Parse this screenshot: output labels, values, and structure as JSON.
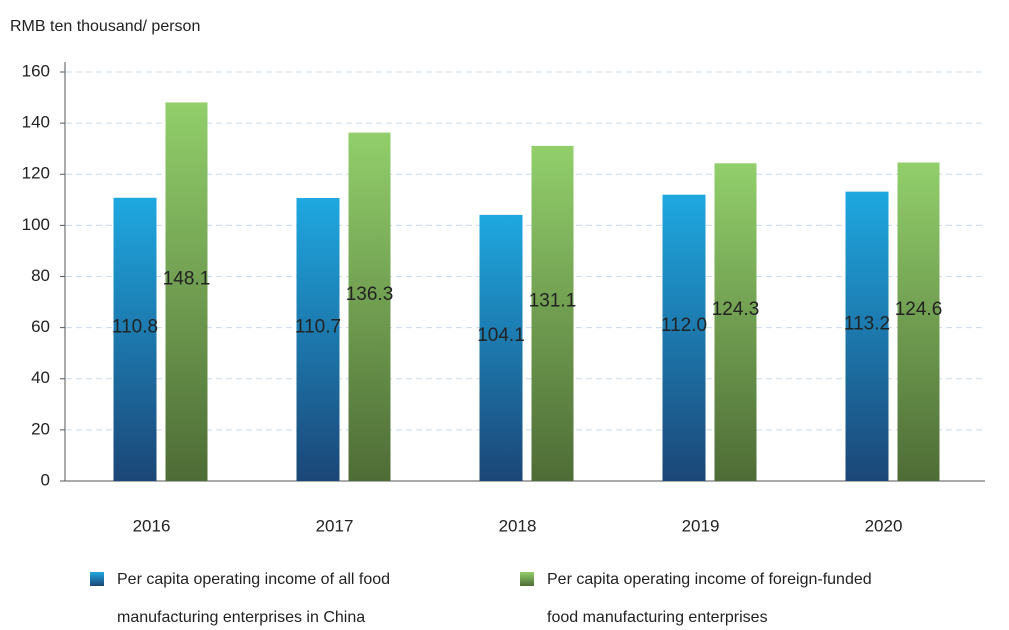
{
  "chart_data": {
    "type": "bar",
    "y_axis_label": "RMB ten thousand/ person",
    "categories": [
      "2016",
      "2017",
      "2018",
      "2019",
      "2020"
    ],
    "series": [
      {
        "name": "Per capita operating income of all food manufacturing enterprises in China",
        "color": "#1ea8e0",
        "values": [
          110.8,
          110.7,
          104.1,
          112,
          113.2
        ],
        "value_labels": [
          "110.8",
          "110.7",
          "104.1",
          "112.0",
          "113.2"
        ]
      },
      {
        "name": "Per capita operating income of foreign-funded food manufacturing enterprises",
        "color": "#8fcc6a",
        "values": [
          148.1,
          136.3,
          131.1,
          124.3,
          124.6
        ],
        "value_labels": [
          "148.1",
          "136.3",
          "131.1",
          "124.3",
          "124.6"
        ]
      }
    ],
    "ylim": [
      0,
      160
    ],
    "yticks": [
      0,
      20,
      40,
      60,
      80,
      100,
      120,
      140,
      160
    ],
    "grid": true
  }
}
